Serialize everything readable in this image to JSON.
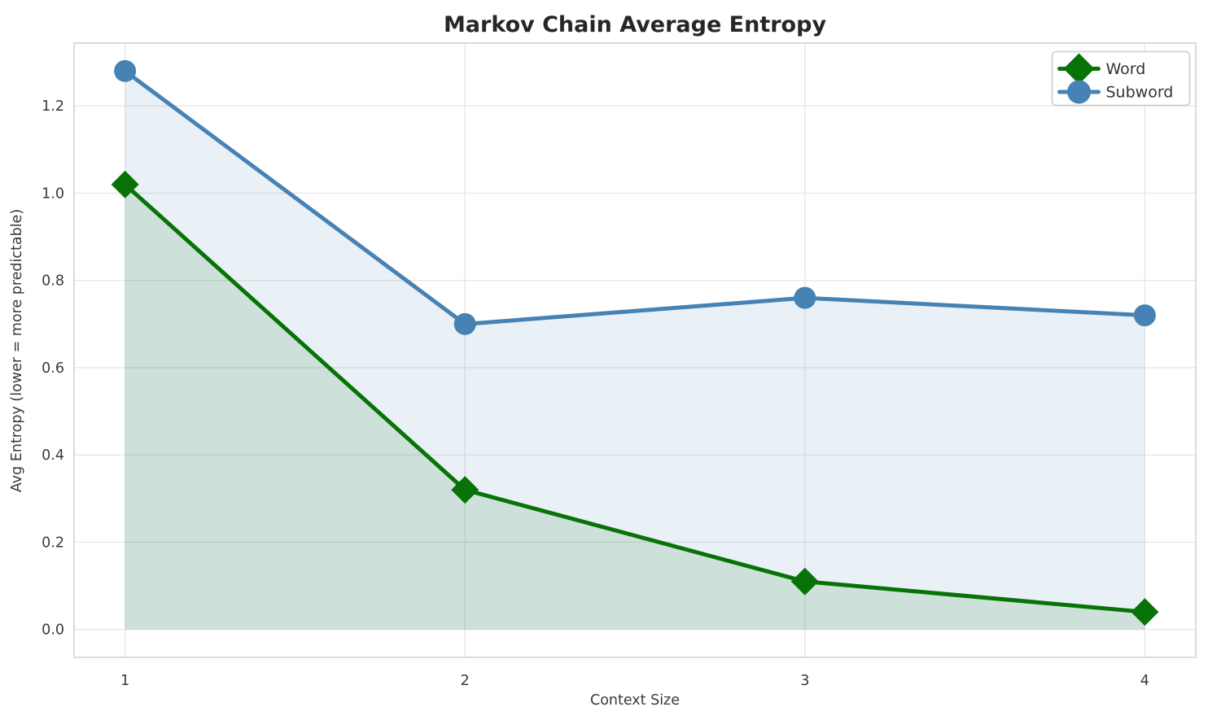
{
  "chart_data": {
    "type": "line",
    "title": "Markov Chain Average Entropy",
    "xlabel": "Context Size",
    "ylabel": "Avg Entropy (lower = more predictable)",
    "x": [
      1,
      2,
      3,
      4
    ],
    "series": [
      {
        "name": "Word",
        "color": "#077307",
        "marker": "diamond",
        "fill_below": true,
        "values": [
          1.02,
          0.32,
          0.11,
          0.04
        ]
      },
      {
        "name": "Subword",
        "color": "#4682b4",
        "marker": "circle",
        "fill_below": true,
        "values": [
          1.28,
          0.7,
          0.76,
          0.72
        ]
      }
    ],
    "xlim": [
      0.85,
      4.15
    ],
    "ylim": [
      -0.064,
      1.344
    ],
    "xtick_values": [
      1,
      2,
      3,
      4
    ],
    "xtick_labels": [
      "1",
      "2",
      "3",
      "4"
    ],
    "ytick_values": [
      0.0,
      0.2,
      0.4,
      0.6,
      0.8,
      1.0,
      1.2
    ],
    "ytick_labels": [
      "0.0",
      "0.2",
      "0.4",
      "0.6",
      "0.8",
      "1.0",
      "1.2"
    ],
    "grid": true,
    "legend_position": "upper right",
    "fill_alpha": 0.12,
    "fill_baseline": 0
  },
  "colors": {
    "background": "#ffffff",
    "grid": "#e7e7e7",
    "spine": "#cccccc",
    "tick_text": "#3a3a3a",
    "title_text": "#262626",
    "legend_border": "#cccccc",
    "legend_text": "#333333"
  }
}
